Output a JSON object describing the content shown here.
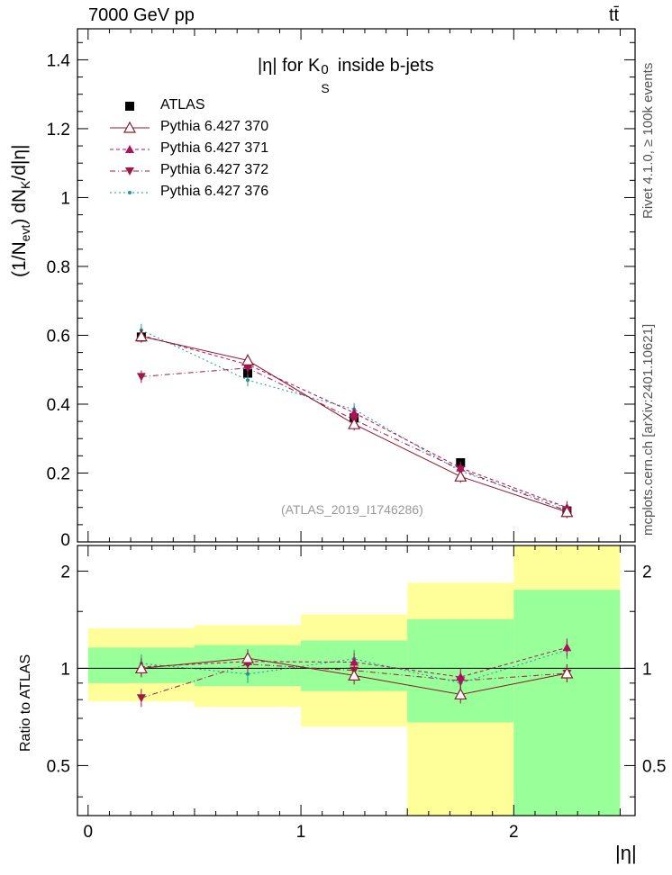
{
  "header": {
    "energy_label": "7000 GeV pp",
    "process_label": "tt̄"
  },
  "side_labels": {
    "rivet": "Rivet 4.1.0, ≥ 100k events",
    "source": "mcplots.cern.ch [arXiv:2401.10621]"
  },
  "chart_data": {
    "type": "line",
    "title": "|η| for K_S^0 inside b-jets",
    "analysis_id": "(ATLAS_2019_I1746286)",
    "xlabel": "|η|",
    "ylabel": "(1/N_evt) dN_K/d|η|",
    "ratio_ylabel": "Ratio to ATLAS",
    "xlim": [
      -0.05,
      2.57
    ],
    "ylim": [
      0,
      1.49
    ],
    "ratio_ylim": [
      0.35,
      2.4
    ],
    "x_ticks": [
      0,
      1,
      2
    ],
    "y_ticks": [
      0.2,
      0.4,
      0.6,
      0.8,
      1.0,
      1.2,
      1.4
    ],
    "y_tick_labels": [
      "0.2",
      "0.4",
      "0.6",
      "0.8",
      "1",
      "1.2",
      "1.4"
    ],
    "y_zero_label": "0",
    "ratio_ticks": [
      0.5,
      1,
      2
    ],
    "bins": [
      {
        "lo": 0.0,
        "hi": 0.5
      },
      {
        "lo": 0.5,
        "hi": 1.0
      },
      {
        "lo": 1.0,
        "hi": 1.5
      },
      {
        "lo": 1.5,
        "hi": 2.0
      },
      {
        "lo": 2.0,
        "hi": 2.5
      }
    ],
    "x": [
      0.25,
      0.75,
      1.25,
      1.75,
      2.25
    ],
    "data": {
      "name": "ATLAS",
      "values": [
        0.595,
        0.49,
        0.36,
        0.23,
        0.09
      ],
      "errors": [
        0.015,
        0.012,
        0.01,
        0.008,
        0.005
      ]
    },
    "series": [
      {
        "name": "Pythia 6.427 370",
        "color": "#8b1a2e",
        "marker": "triangle-open",
        "dash": "",
        "values": [
          0.597,
          0.527,
          0.342,
          0.19,
          0.087
        ],
        "ratio": [
          1.0,
          1.075,
          0.95,
          0.83,
          0.965
        ]
      },
      {
        "name": "Pythia 6.427 371",
        "color": "#b0105a",
        "marker": "triangle-up",
        "dash": "4,3",
        "values": [
          0.6,
          0.515,
          0.375,
          0.215,
          0.1
        ],
        "ratio": [
          1.01,
          1.05,
          1.045,
          0.94,
          1.16
        ]
      },
      {
        "name": "Pythia 6.427 372",
        "color": "#a0184a",
        "marker": "triangle-down",
        "dash": "6,3,1,3",
        "values": [
          0.48,
          0.505,
          0.355,
          0.21,
          0.09
        ],
        "ratio": [
          0.81,
          1.03,
          0.985,
          0.915,
          0.965
        ]
      },
      {
        "name": "Pythia 6.427 376",
        "color": "#1a9a9a",
        "marker": "dot",
        "dash": "2,3",
        "values": [
          0.615,
          0.47,
          0.385,
          0.205,
          0.098
        ],
        "ratio": [
          1.035,
          0.96,
          1.07,
          0.9,
          1.14
        ]
      }
    ],
    "ratio_bands": {
      "green": [
        [
          0.9,
          1.16
        ],
        [
          0.88,
          1.18
        ],
        [
          0.85,
          1.22
        ],
        [
          0.68,
          1.42
        ],
        [
          0.35,
          1.75
        ]
      ],
      "yellow": [
        [
          0.79,
          1.33
        ],
        [
          0.76,
          1.36
        ],
        [
          0.66,
          1.47
        ],
        [
          0.35,
          1.84
        ],
        [
          0.35,
          2.4
        ]
      ]
    }
  }
}
